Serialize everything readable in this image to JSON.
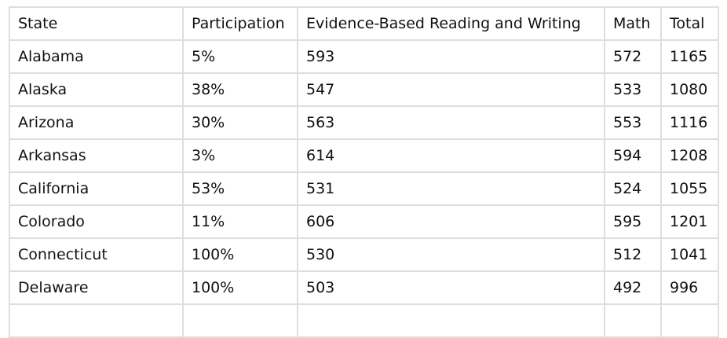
{
  "table": {
    "headers": [
      "State",
      "Participation",
      "Evidence-Based Reading and Writing",
      "Math",
      "Total"
    ],
    "rows": [
      [
        "Alabama",
        "5%",
        "593",
        "572",
        "1165"
      ],
      [
        "Alaska",
        "38%",
        "547",
        "533",
        "1080"
      ],
      [
        "Arizona",
        "30%",
        "563",
        "553",
        "1116"
      ],
      [
        "Arkansas",
        "3%",
        "614",
        "594",
        "1208"
      ],
      [
        "California",
        "53%",
        "531",
        "524",
        "1055"
      ],
      [
        "Colorado",
        "11%",
        "606",
        "595",
        "1201"
      ],
      [
        "Connecticut",
        "100%",
        "530",
        "512",
        "1041"
      ],
      [
        "Delaware",
        "100%",
        "503",
        "492",
        "996"
      ],
      [
        "",
        "",
        "",
        "",
        ""
      ]
    ]
  }
}
